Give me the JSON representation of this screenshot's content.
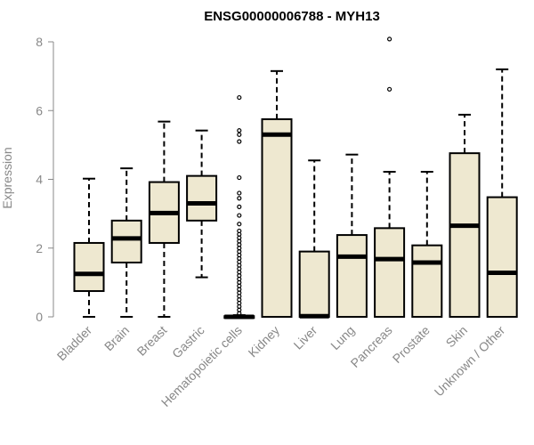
{
  "chart_data": {
    "type": "box",
    "title": "ENSG00000006788 - MYH13",
    "xlabel": "",
    "ylabel": "Expression",
    "ylim": [
      0,
      8
    ],
    "yticks": [
      0,
      2,
      4,
      6,
      8
    ],
    "grid": false,
    "legend": "none",
    "box_fill": "#EEE8D0",
    "box_stroke": "#000000",
    "categories": [
      "Bladder",
      "Brain",
      "Breast",
      "Gastric",
      "Hematopoietic cells",
      "Kidney",
      "Liver",
      "Lung",
      "Pancreas",
      "Prostate",
      "Skin",
      "Unknown / Other"
    ],
    "boxes": [
      {
        "category": "Bladder",
        "min": 0.0,
        "q1": 0.75,
        "median": 1.25,
        "q3": 2.15,
        "max": 4.02,
        "outliers": []
      },
      {
        "category": "Brain",
        "min": 0.0,
        "q1": 1.58,
        "median": 2.28,
        "q3": 2.8,
        "max": 4.32,
        "outliers": []
      },
      {
        "category": "Breast",
        "min": 0.0,
        "q1": 2.15,
        "median": 3.02,
        "q3": 3.92,
        "max": 5.68,
        "outliers": []
      },
      {
        "category": "Gastric",
        "min": 1.15,
        "q1": 2.8,
        "median": 3.3,
        "q3": 4.1,
        "max": 5.42,
        "outliers": []
      },
      {
        "category": "Hematopoietic cells",
        "min": 0.0,
        "q1": 0.0,
        "median": 0.0,
        "q3": 0.02,
        "max": 0.05,
        "outliers": [
          6.38,
          5.42,
          5.3,
          5.1,
          4.05,
          3.6,
          3.45,
          3.2,
          2.95,
          2.7,
          2.5,
          2.4,
          2.3,
          2.2,
          2.1,
          2.0,
          1.9,
          1.8,
          1.7,
          1.6,
          1.5,
          1.4,
          1.3,
          1.2,
          1.1,
          1.0,
          0.9,
          0.8,
          0.7,
          0.6,
          0.5,
          0.4,
          0.3,
          0.2,
          0.1
        ]
      },
      {
        "category": "Kidney",
        "min": 0.0,
        "q1": 0.0,
        "median": 5.3,
        "q3": 5.75,
        "max": 7.15,
        "outliers": []
      },
      {
        "category": "Liver",
        "min": 0.0,
        "q1": 0.0,
        "median": 0.02,
        "q3": 1.9,
        "max": 4.55,
        "outliers": []
      },
      {
        "category": "Lung",
        "min": 0.0,
        "q1": 0.0,
        "median": 1.75,
        "q3": 2.38,
        "max": 4.72,
        "outliers": []
      },
      {
        "category": "Pancreas",
        "min": 0.0,
        "q1": 0.0,
        "median": 1.68,
        "q3": 2.58,
        "max": 4.22,
        "outliers": [
          8.08,
          6.62
        ]
      },
      {
        "category": "Prostate",
        "min": 0.0,
        "q1": 0.0,
        "median": 1.58,
        "q3": 2.08,
        "max": 4.22,
        "outliers": []
      },
      {
        "category": "Skin",
        "min": 0.0,
        "q1": 0.0,
        "median": 2.65,
        "q3": 4.76,
        "max": 5.88,
        "outliers": []
      },
      {
        "category": "Unknown / Other",
        "min": 0.0,
        "q1": 0.0,
        "median": 1.28,
        "q3": 3.48,
        "max": 7.2,
        "outliers": []
      }
    ]
  }
}
